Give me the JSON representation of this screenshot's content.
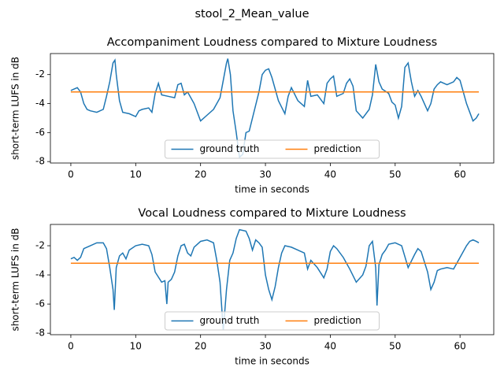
{
  "title": "stool_2_Mean_value",
  "chart_data": [
    {
      "type": "line",
      "title": "Accompaniment Loudness compared to Mixture Loudness",
      "xlabel": "time in seconds",
      "ylabel": "short-term LUFS in dB",
      "xlim": [
        -3.15,
        65.2
      ],
      "ylim": [
        -8.1,
        -0.55
      ],
      "xticks": [
        0,
        10,
        20,
        30,
        40,
        50,
        60
      ],
      "yticks": [
        -8,
        -6,
        -4,
        -2
      ],
      "legend": "lower center",
      "series": [
        {
          "name": "ground truth",
          "color": "#1f77b4",
          "x": [
            0,
            0.5,
            1,
            1.5,
            2,
            2.5,
            3,
            4,
            5,
            5.5,
            6,
            6.5,
            6.8,
            7,
            7.5,
            8,
            9,
            10,
            10.5,
            11,
            12,
            12.5,
            13,
            13.5,
            14,
            15,
            16,
            16.5,
            17,
            17.5,
            18,
            19,
            20,
            21,
            22,
            23,
            23.5,
            24,
            24.2,
            24.6,
            25,
            25.5,
            26,
            26.5,
            27,
            27.5,
            28,
            29,
            29.5,
            30,
            30.5,
            31,
            32,
            33,
            33.5,
            34,
            35,
            36,
            36.5,
            37,
            38,
            39,
            39.5,
            40,
            40.5,
            41,
            42,
            42.5,
            43,
            43.5,
            44,
            45,
            46,
            46.5,
            47,
            47.5,
            48,
            49,
            49.5,
            50,
            50.5,
            51,
            51.5,
            52,
            52.5,
            53,
            53.5,
            54,
            55,
            55.5,
            56,
            56.5,
            57,
            58,
            59,
            59.5,
            60,
            61,
            61.5,
            62,
            62.5,
            62.9
          ],
          "values": [
            -3.1,
            -3.0,
            -2.9,
            -3.2,
            -4.0,
            -4.4,
            -4.5,
            -4.6,
            -4.4,
            -3.5,
            -2.5,
            -1.2,
            -1.0,
            -2.0,
            -3.8,
            -4.6,
            -4.7,
            -4.9,
            -4.5,
            -4.4,
            -4.3,
            -4.6,
            -3.3,
            -2.6,
            -3.4,
            -3.5,
            -3.6,
            -2.7,
            -2.6,
            -3.4,
            -3.2,
            -4.0,
            -5.2,
            -4.8,
            -4.4,
            -3.6,
            -2.4,
            -1.2,
            -0.9,
            -2.0,
            -4.5,
            -6.0,
            -7.7,
            -7.5,
            -6.0,
            -5.9,
            -5.0,
            -3.2,
            -2.0,
            -1.7,
            -1.6,
            -2.2,
            -3.8,
            -4.7,
            -3.5,
            -2.9,
            -3.8,
            -4.2,
            -2.4,
            -3.5,
            -3.4,
            -4.0,
            -2.6,
            -2.3,
            -2.1,
            -3.5,
            -3.3,
            -2.6,
            -2.3,
            -2.8,
            -4.5,
            -5.0,
            -4.4,
            -3.4,
            -1.3,
            -2.5,
            -3.0,
            -3.3,
            -3.9,
            -4.1,
            -5.0,
            -4.2,
            -1.5,
            -1.2,
            -2.5,
            -3.5,
            -3.1,
            -3.5,
            -4.5,
            -4.0,
            -3.0,
            -2.7,
            -2.5,
            -2.7,
            -2.5,
            -2.2,
            -2.4,
            -4.0,
            -4.6,
            -5.2,
            -5.0,
            -4.7
          ]
        },
        {
          "name": "prediction",
          "color": "#ff7f0e",
          "x": [
            0,
            62.9
          ],
          "values": [
            -3.2,
            -3.2
          ]
        }
      ]
    },
    {
      "type": "line",
      "title": "Vocal Loudness compared to Mixture Loudness",
      "xlabel": "time in seconds",
      "ylabel": "short-term LUFS in dB",
      "xlim": [
        -3.15,
        65.2
      ],
      "ylim": [
        -8.1,
        -0.54
      ],
      "xticks": [
        0,
        10,
        20,
        30,
        40,
        50,
        60
      ],
      "yticks": [
        -8,
        -6,
        -4,
        -2
      ],
      "legend": "lower center",
      "series": [
        {
          "name": "ground truth",
          "color": "#1f77b4",
          "x": [
            0,
            0.5,
            1,
            1.5,
            2,
            3,
            4,
            5,
            5.5,
            6,
            6.5,
            6.7,
            7,
            7.5,
            8,
            8.5,
            9,
            10,
            11,
            12,
            12.5,
            13,
            14,
            14.5,
            14.8,
            15,
            15.5,
            16,
            16.5,
            17,
            17.5,
            18,
            18.5,
            19,
            20,
            21,
            22,
            22.5,
            23,
            23.5,
            24,
            24.5,
            25,
            25.5,
            26,
            27,
            27.5,
            28,
            28.5,
            29,
            29.5,
            30,
            30.5,
            31,
            31.5,
            32,
            32.5,
            33,
            34,
            35,
            36,
            36.5,
            37,
            38,
            39,
            39.5,
            40,
            40.5,
            41,
            42,
            43,
            44,
            45,
            45.5,
            46,
            46.5,
            47,
            47.2,
            47.5,
            48,
            48.5,
            49,
            50,
            51,
            52,
            53,
            53.5,
            54,
            55,
            55.5,
            56,
            56.5,
            57,
            58,
            59,
            60,
            61,
            61.5,
            62,
            62.5,
            62.9
          ],
          "values": [
            -2.9,
            -2.8,
            -3.0,
            -2.8,
            -2.2,
            -2.0,
            -1.8,
            -1.8,
            -2.2,
            -3.5,
            -5.0,
            -6.4,
            -3.5,
            -2.7,
            -2.5,
            -2.9,
            -2.3,
            -2.0,
            -1.9,
            -2.0,
            -2.6,
            -3.8,
            -4.5,
            -4.4,
            -6.0,
            -4.5,
            -4.3,
            -3.8,
            -2.7,
            -2.0,
            -1.9,
            -2.5,
            -2.7,
            -2.1,
            -1.7,
            -1.6,
            -1.8,
            -3.0,
            -4.5,
            -7.8,
            -5.0,
            -3.0,
            -2.5,
            -1.5,
            -0.9,
            -1.0,
            -1.5,
            -2.3,
            -1.6,
            -1.8,
            -2.1,
            -4.0,
            -5.0,
            -5.7,
            -4.8,
            -3.5,
            -2.5,
            -2.0,
            -2.1,
            -2.3,
            -2.5,
            -3.6,
            -3.0,
            -3.5,
            -4.2,
            -3.6,
            -2.4,
            -2.0,
            -2.2,
            -2.8,
            -3.6,
            -4.5,
            -4.0,
            -3.4,
            -2.0,
            -1.7,
            -3.5,
            -6.1,
            -3.3,
            -2.6,
            -2.3,
            -1.9,
            -1.8,
            -2.0,
            -3.5,
            -2.6,
            -2.2,
            -2.4,
            -3.8,
            -5.0,
            -4.5,
            -3.7,
            -3.6,
            -3.5,
            -3.6,
            -2.8,
            -2.0,
            -1.7,
            -1.6,
            -1.7,
            -1.8
          ]
        },
        {
          "name": "prediction",
          "color": "#ff7f0e",
          "x": [
            0,
            62.9
          ],
          "values": [
            -3.2,
            -3.2
          ]
        }
      ]
    }
  ]
}
